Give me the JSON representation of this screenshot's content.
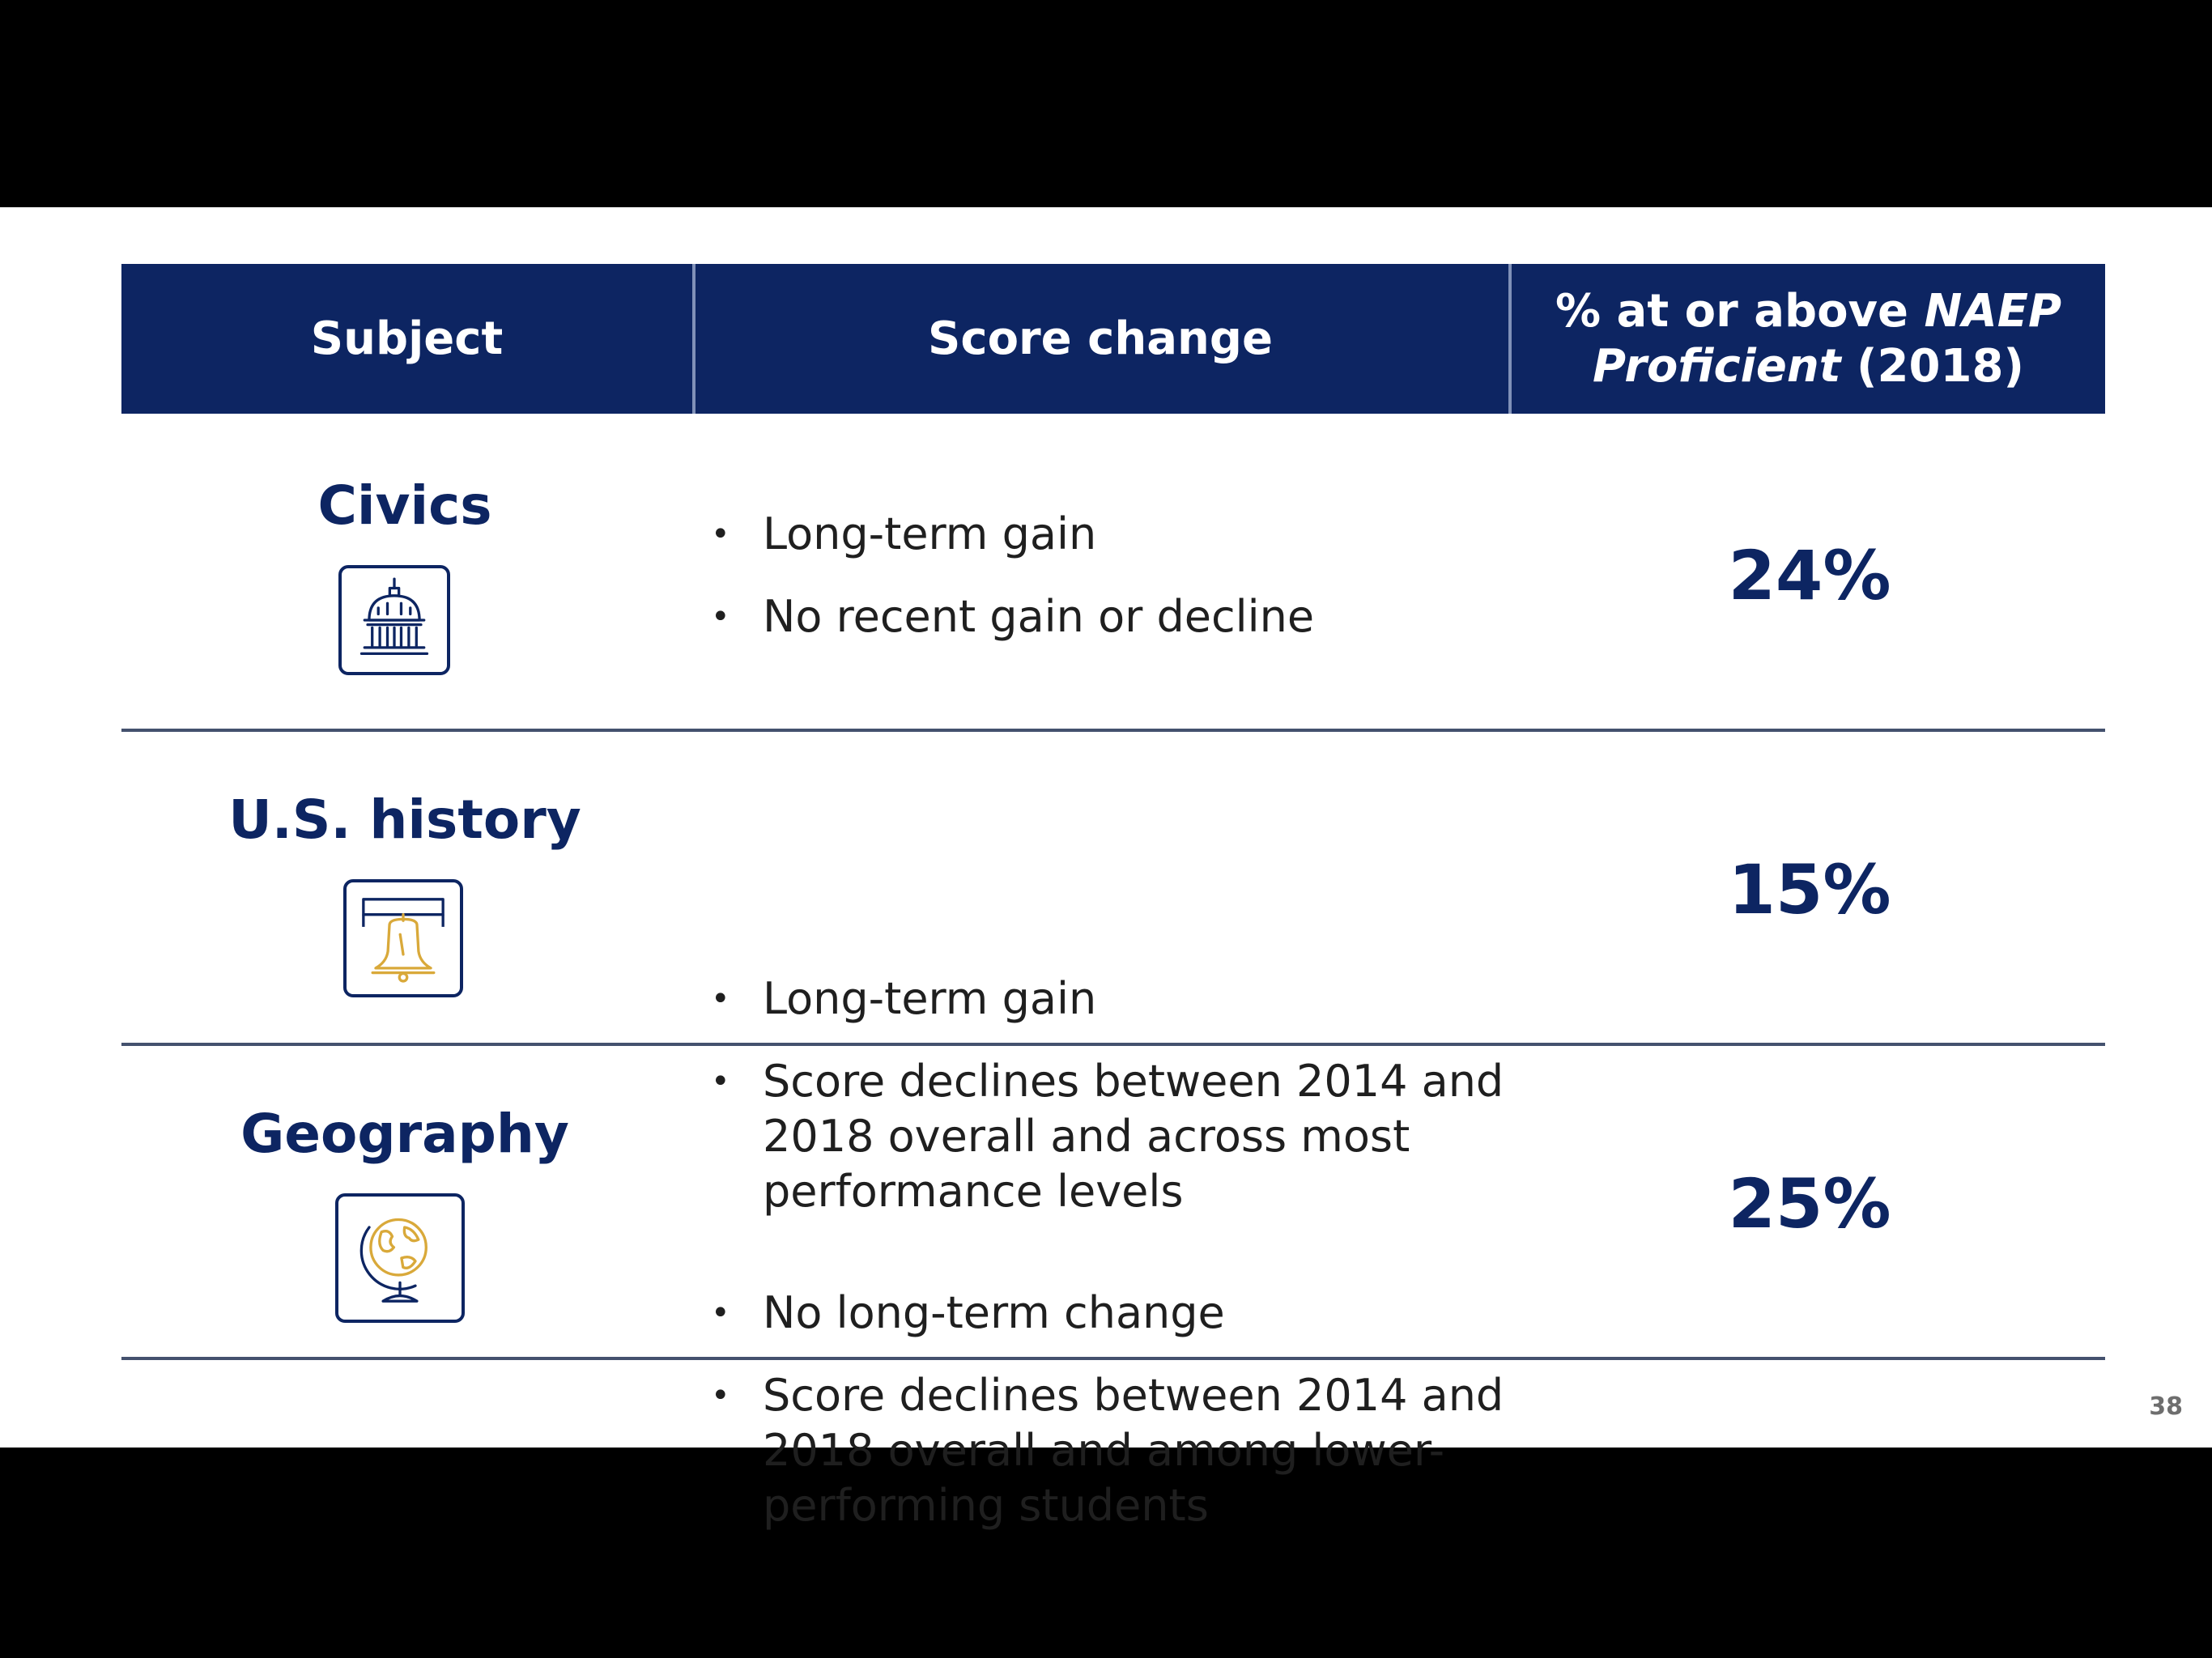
{
  "table": {
    "headers": {
      "subject": "Subject",
      "score_change": "Score change",
      "proficient_prefix": "% at or above ",
      "proficient_italic": "NAEP",
      "proficient_line2_italic": "Proficient",
      "proficient_line2_rest": " (2018)"
    },
    "rows": [
      {
        "subject": "Civics",
        "icon": "capitol-dome-icon",
        "bullets": [
          "Long-term gain",
          "No recent gain or decline"
        ],
        "percent": "24%"
      },
      {
        "subject": "U.S. history",
        "icon": "liberty-bell-icon",
        "bullets": [
          "Long-term gain",
          "Score declines between 2014 and 2018 overall and across most performance levels"
        ],
        "percent": "15%"
      },
      {
        "subject": "Geography",
        "icon": "globe-icon",
        "bullets": [
          "No long-term change",
          "Score declines between 2014 and 2018 overall and among lower-performing students"
        ],
        "percent": "25%"
      }
    ]
  },
  "page_number": "38",
  "colors": {
    "navy": "#0d2562",
    "gold": "#e3b23c"
  }
}
